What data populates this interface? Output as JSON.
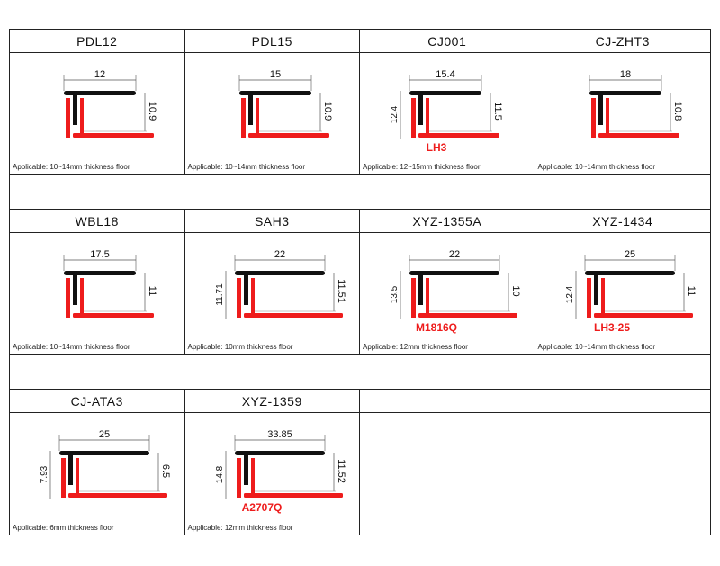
{
  "products": [
    {
      "name": "PDL12",
      "width": "12",
      "height": "10.9",
      "applicable": "Applicable: 10~14mm thickness floor"
    },
    {
      "name": "PDL15",
      "width": "15",
      "height": "10.9",
      "applicable": "Applicable: 10~14mm thickness floor"
    },
    {
      "name": "CJ001",
      "width": "15.4",
      "height": "11.5",
      "left_height": "12.4",
      "code": "LH3",
      "applicable": "Applicable: 12~15mm thickness floor"
    },
    {
      "name": "CJ-ZHT3",
      "width": "18",
      "height": "10.8",
      "applicable": "Applicable: 10~14mm thickness floor"
    },
    {
      "name": "WBL18",
      "width": "17.5",
      "height": "11",
      "applicable": "Applicable: 10~14mm thickness floor"
    },
    {
      "name": "SAH3",
      "width": "22",
      "height": "11.51",
      "left_height": "11.71",
      "applicable": "Applicable: 10mm thickness floor"
    },
    {
      "name": "XYZ-1355A",
      "width": "22",
      "height": "10",
      "left_height": "13.5",
      "code": "M1816Q",
      "applicable": "Applicable: 12mm thickness floor"
    },
    {
      "name": "XYZ-1434",
      "width": "25",
      "height": "11",
      "left_height": "12.4",
      "code": "LH3-25",
      "applicable": "Applicable: 10~14mm thickness floor"
    },
    {
      "name": "CJ-ATA3",
      "width": "25",
      "height": "6.5",
      "left_height": "7.93",
      "applicable": "Applicable: 6mm thickness floor"
    },
    {
      "name": "XYZ-1359",
      "width": "33.85",
      "height": "11.52",
      "left_height": "14.8",
      "code": "A2707Q",
      "applicable": "Applicable: 12mm thickness floor"
    }
  ],
  "colors": {
    "profile_red": "#ee1c1c",
    "profile_black": "#111111"
  }
}
